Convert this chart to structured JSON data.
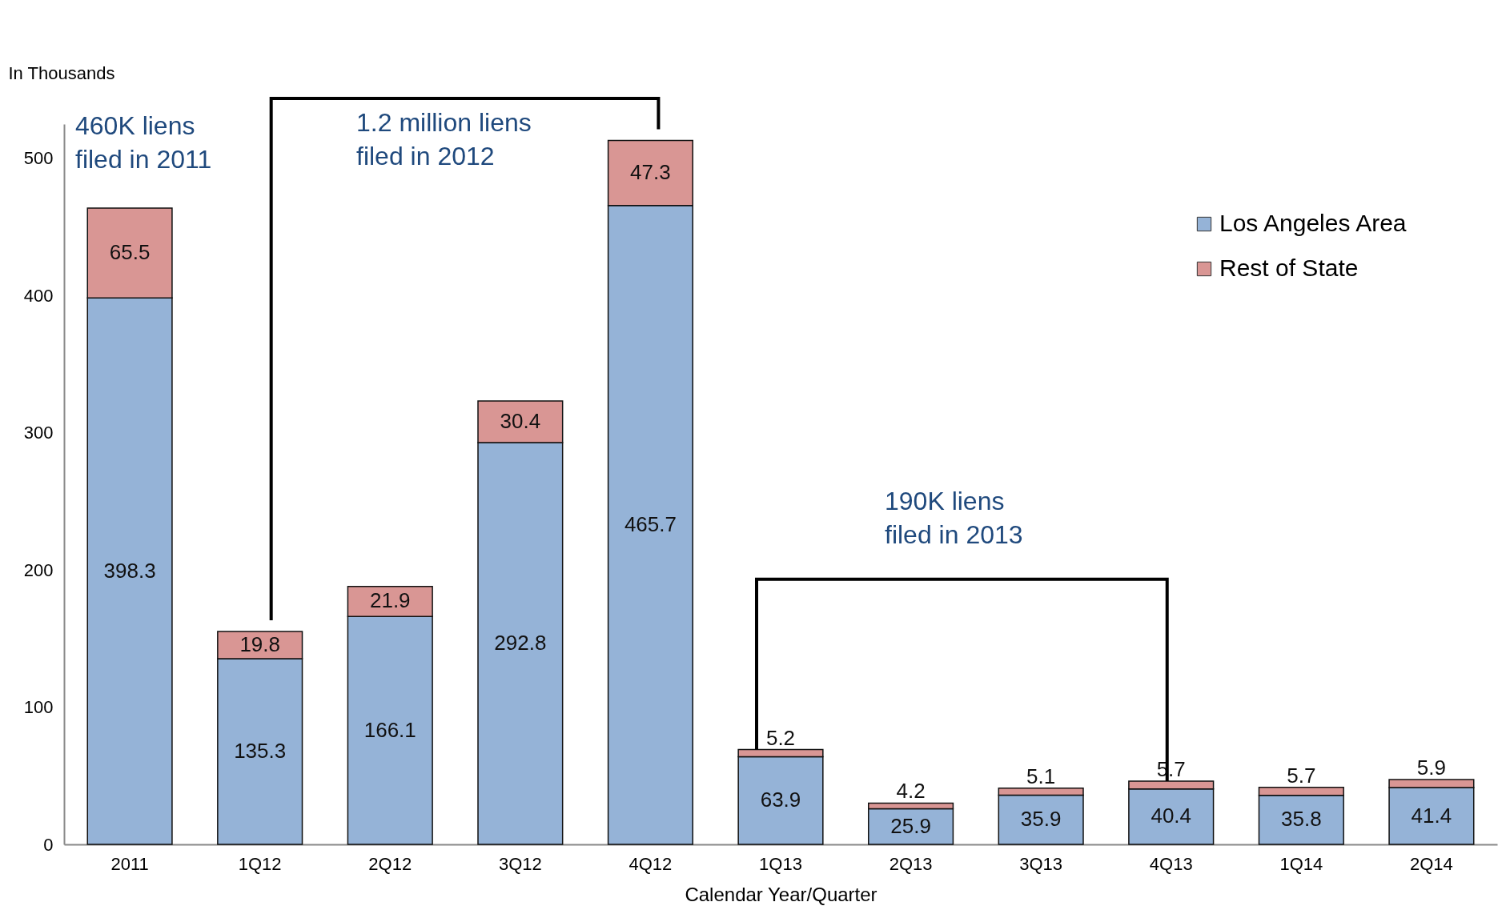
{
  "chart_data": {
    "type": "bar",
    "stacked": true,
    "ylabel": "In Thousands",
    "xlabel": "Calendar Year/Quarter",
    "categories": [
      "2011",
      "1Q12",
      "2Q12",
      "3Q12",
      "4Q12",
      "1Q13",
      "2Q13",
      "3Q13",
      "4Q13",
      "1Q14",
      "2Q14"
    ],
    "series": [
      {
        "name": "Los Angeles Area",
        "color": "#95b3d7",
        "values": [
          398.3,
          135.3,
          166.1,
          292.8,
          465.7,
          63.9,
          25.9,
          35.9,
          40.4,
          35.8,
          41.4
        ]
      },
      {
        "name": "Rest of State",
        "color": "#d99694",
        "values": [
          65.5,
          19.8,
          21.9,
          30.4,
          47.3,
          5.2,
          4.2,
          5.1,
          5.7,
          5.7,
          5.9
        ]
      }
    ],
    "ylim": [
      0,
      525
    ],
    "yticks": [
      0,
      100,
      200,
      300,
      400,
      500
    ],
    "data_labels": true,
    "legend": "top right",
    "grid": false,
    "annotations": [
      "460K liens\nfiled in 2011",
      "1.2 million liens\nfiled in  2012",
      "190K liens\nfiled in 2013"
    ]
  }
}
